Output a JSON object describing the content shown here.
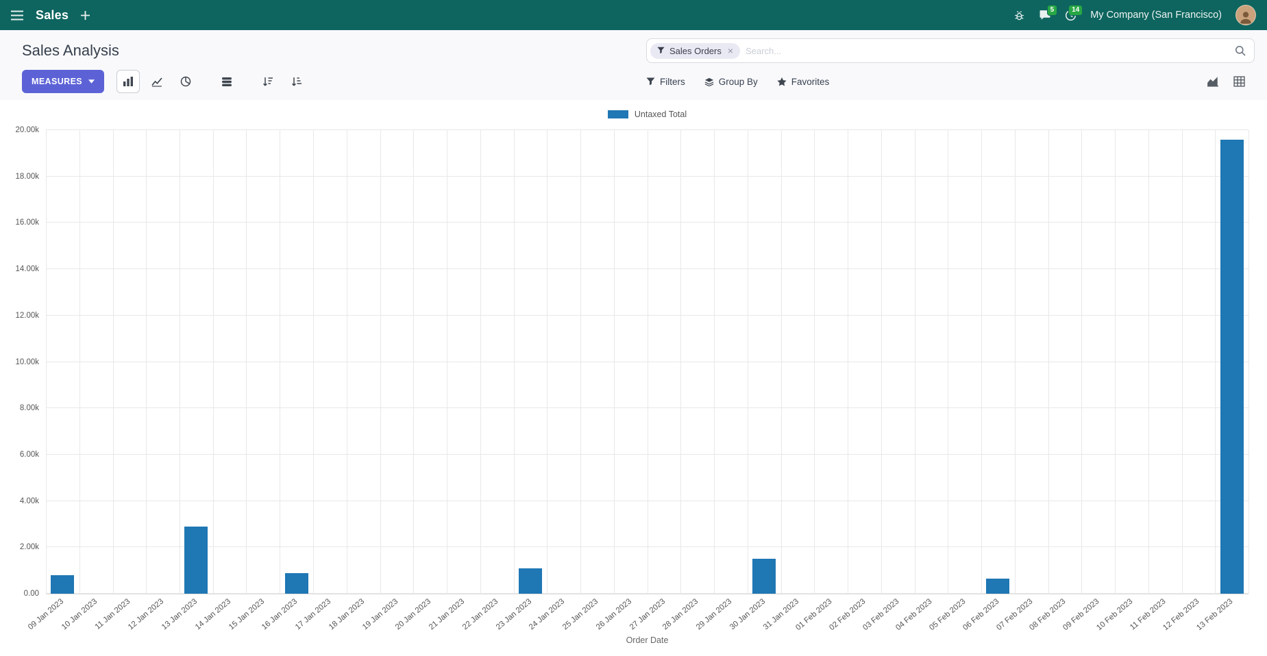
{
  "colors": {
    "primary": "#5c62d6",
    "header_bg": "#0e655f",
    "badge_green": "#28a745",
    "bar_blue": "#1f77b4"
  },
  "topbar": {
    "app_name": "Sales",
    "company": "My Company (San Francisco)",
    "chat_badge": "5",
    "activity_badge": "14"
  },
  "control_panel": {
    "title": "Sales Analysis",
    "measures_label": "MEASURES",
    "search": {
      "facet": "Sales Orders",
      "facet_remove": "×",
      "placeholder": "Search..."
    },
    "filters_label": "Filters",
    "group_by_label": "Group By",
    "favorites_label": "Favorites"
  },
  "icons": {
    "menu-icon": "hamburger",
    "plus-icon": "+",
    "bug-icon": "bug",
    "messages-icon": "speech-bubble",
    "activity-icon": "clock",
    "search-icon": "magnifier",
    "filter-icon": "funnel",
    "group-by-icon": "layers",
    "favorites-icon": "star",
    "bar-chart-icon": "bars",
    "line-chart-icon": "line",
    "pie-chart-icon": "pie",
    "stacked-icon": "stack",
    "sort-desc-icon": "sort-desc",
    "sort-asc-icon": "sort-asc",
    "area-view-icon": "area-chart",
    "pivot-view-icon": "grid",
    "caret-down-icon": "caret-down",
    "remove-facet-icon": "×"
  },
  "chart_data": {
    "type": "bar",
    "title": "",
    "legend_position": "top",
    "grid": true,
    "xlabel": "Order Date",
    "ylabel": "",
    "ylim": [
      0,
      20000
    ],
    "ytick_values": [
      0,
      2000,
      4000,
      6000,
      8000,
      10000,
      12000,
      14000,
      16000,
      18000,
      20000
    ],
    "ytick_labels": [
      "0.00",
      "2.00k",
      "4.00k",
      "6.00k",
      "8.00k",
      "10.00k",
      "12.00k",
      "14.00k",
      "16.00k",
      "18.00k",
      "20.00k"
    ],
    "categories": [
      "09 Jan 2023",
      "10 Jan 2023",
      "11 Jan 2023",
      "12 Jan 2023",
      "13 Jan 2023",
      "14 Jan 2023",
      "15 Jan 2023",
      "16 Jan 2023",
      "17 Jan 2023",
      "18 Jan 2023",
      "19 Jan 2023",
      "20 Jan 2023",
      "21 Jan 2023",
      "22 Jan 2023",
      "23 Jan 2023",
      "24 Jan 2023",
      "25 Jan 2023",
      "26 Jan 2023",
      "27 Jan 2023",
      "28 Jan 2023",
      "29 Jan 2023",
      "30 Jan 2023",
      "31 Jan 2023",
      "01 Feb 2023",
      "02 Feb 2023",
      "03 Feb 2023",
      "04 Feb 2023",
      "05 Feb 2023",
      "06 Feb 2023",
      "07 Feb 2023",
      "08 Feb 2023",
      "09 Feb 2023",
      "10 Feb 2023",
      "11 Feb 2023",
      "12 Feb 2023",
      "13 Feb 2023"
    ],
    "series": [
      {
        "name": "Untaxed Total",
        "color": "#1f77b4",
        "values": [
          800,
          0,
          0,
          0,
          2900,
          0,
          0,
          900,
          0,
          0,
          0,
          0,
          0,
          0,
          1100,
          0,
          0,
          0,
          0,
          0,
          0,
          1500,
          0,
          0,
          0,
          0,
          0,
          0,
          650,
          0,
          0,
          0,
          0,
          0,
          0,
          19600
        ]
      }
    ]
  }
}
